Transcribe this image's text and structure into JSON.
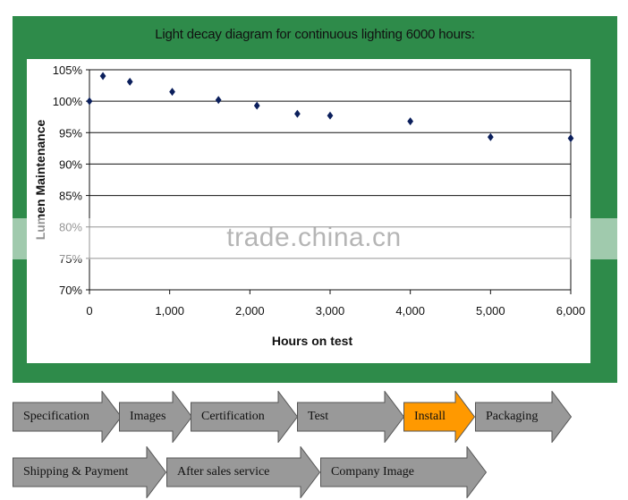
{
  "chart_data": {
    "type": "scatter",
    "title": "Light decay diagram for continuous lighting 6000 hours:",
    "xlabel": "Hours on test",
    "ylabel": "Lumen Maintenance",
    "xlim": [
      0,
      6000
    ],
    "ylim": [
      70,
      105
    ],
    "x_ticks": [
      "0",
      "1,000",
      "2,000",
      "3,000",
      "4,000",
      "5,000",
      "6,000"
    ],
    "y_ticks": [
      "105%",
      "100%",
      "95%",
      "90%",
      "85%",
      "80%",
      "75%",
      "70%"
    ],
    "grid": "horizontal",
    "marker": "diamond",
    "series": [
      {
        "x": [
          0,
          168,
          504,
          1032,
          1608,
          2088,
          2592,
          3000,
          4000,
          5000,
          6000
        ],
        "y": [
          100,
          104,
          103.1,
          101.5,
          100.2,
          99.3,
          98.0,
          97.7,
          96.8,
          94.3,
          94.1
        ]
      }
    ],
    "colors": {
      "marker": "#0b1f5c",
      "panel": "#2e8b4a",
      "grid": "#111111"
    }
  },
  "watermark": "trade.china.cn",
  "nav": {
    "row1": [
      {
        "label": "Specification"
      },
      {
        "label": "Images"
      },
      {
        "label": "Certification"
      },
      {
        "label": "Test"
      },
      {
        "label": "Install",
        "active": true
      },
      {
        "label": "Packaging"
      }
    ],
    "row2": [
      {
        "label": "Shipping & Payment"
      },
      {
        "label": "After sales service"
      },
      {
        "label": "Company Image"
      }
    ],
    "colors": {
      "normal": "#999999",
      "active": "#ff9900"
    }
  }
}
